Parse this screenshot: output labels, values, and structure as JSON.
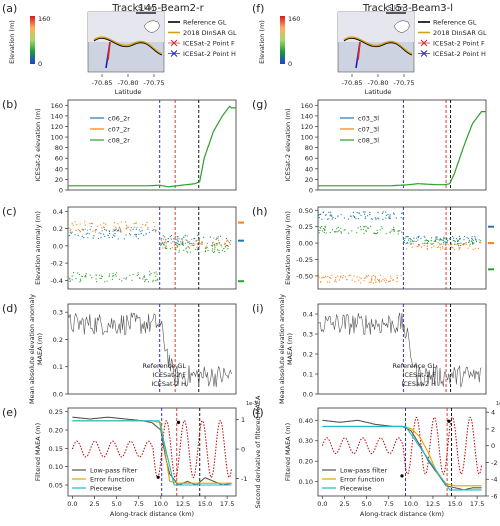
{
  "columns": [
    {
      "title": "Track145-Beam2-r",
      "panel_letters": [
        "(a)",
        "(b)",
        "(c)",
        "(d)",
        "(e)"
      ],
      "series_names": [
        "c06_2r",
        "c07_2r",
        "c08_2r"
      ]
    },
    {
      "title": "Track153-Beam3-l",
      "panel_letters": [
        "(f)",
        "(g)",
        "(h)",
        "(i)",
        "(j)"
      ],
      "series_names": [
        "c03_3l",
        "c07_3l",
        "c08_3l"
      ]
    }
  ],
  "map": {
    "colorbar_label": "Elevation (m)",
    "colorbar_ticks": [
      "160",
      "0"
    ],
    "scale_label": "5 km",
    "legend": [
      "Reference GL",
      "2018 DInSAR GL",
      "ICESat-2 Point F",
      "ICESat-2 Point H"
    ],
    "lat_axis_label": "Latitude",
    "lat_ticks": [
      "-70.85",
      "-70.80",
      "-70.75"
    ]
  },
  "labels": {
    "elev_ylabel": "ICESat-2 elevation (m)",
    "anom_ylabel": "Elevation anomaly (m)",
    "maea_ylabel": "Mean absolute elevation anomaly\nMAEA (m)",
    "filt_ylabel": "Filtered MAEA (m)",
    "deriv_ylabel": "Second derivative of filtered MAEA",
    "xlabel": "Along-track distance (km)",
    "deriv_exponent": "1e-3"
  },
  "line_legend_d": [
    "Reference GL",
    "ICESat-2 F",
    "ICESat-2 H"
  ],
  "line_legend_e": [
    "Low-pass filter",
    "Error function",
    "Piecewise"
  ],
  "colors": {
    "series1": "#1f77b4",
    "series2": "#ff7f0e",
    "series3": "#2ca02c",
    "ref_gl": "#000000",
    "point_f": "#d62728",
    "point_h": "#1f1fbf",
    "lowpass": "#555555",
    "errfun": "#e8a100",
    "piecewise": "#17becf",
    "deriv": "#c00000",
    "dinsar": "#d4a017"
  },
  "chart_data": [
    {
      "panel": "(b)",
      "type": "line",
      "xlim": [
        0,
        18.5
      ],
      "ylim": [
        0,
        170
      ],
      "yticks": [
        0,
        20,
        40,
        60,
        80,
        100,
        120,
        140,
        160
      ],
      "x": [
        0,
        2,
        4,
        6,
        8,
        9,
        10,
        10.5,
        11,
        12,
        13,
        13.5,
        14,
        14.5,
        15,
        16,
        17,
        17.8,
        18
      ],
      "series": [
        {
          "name": "c08_2r",
          "values": [
            8,
            8,
            8,
            8,
            8,
            8,
            9,
            8,
            6,
            8,
            10,
            11,
            12,
            16,
            60,
            110,
            140,
            158,
            155
          ]
        }
      ],
      "vlines": {
        "ref_gl": 14.4,
        "point_f": 11.8,
        "point_h": 10.1
      }
    },
    {
      "panel": "(c)",
      "type": "scatter",
      "xlim": [
        0,
        18.5
      ],
      "ylim": [
        -0.5,
        0.45
      ],
      "yticks": [
        -0.4,
        -0.2,
        0.0,
        0.2,
        0.4
      ],
      "series": [
        {
          "name": "c06_2r",
          "before": 0.14,
          "after": 0.06
        },
        {
          "name": "c07_2r",
          "before": 0.22,
          "after": 0.03
        },
        {
          "name": "c08_2r",
          "before": -0.36,
          "after": -0.02
        }
      ],
      "side_markers": [
        0.06,
        0.27,
        -0.41
      ],
      "vlines": {
        "ref_gl": 14.4,
        "point_f": 11.8,
        "point_h": 10.1
      }
    },
    {
      "panel": "(d)",
      "type": "line",
      "xlim": [
        0,
        18.5
      ],
      "ylim": [
        0,
        0.33
      ],
      "yticks": [
        0.0,
        0.1,
        0.2,
        0.3
      ],
      "vlines": {
        "ref_gl": 14.4,
        "point_f": 11.8,
        "point_h": 10.1
      }
    },
    {
      "panel": "(e)",
      "type": "line",
      "xlim": [
        -0.5,
        18.5
      ],
      "xticks": [
        0.0,
        2.5,
        5.0,
        7.5,
        10.0,
        12.5,
        15.0,
        17.5
      ],
      "ylim": [
        0.02,
        0.26
      ],
      "yticks": [
        0.05,
        0.1,
        0.15,
        0.2,
        0.25
      ],
      "y2lim": [
        -1.6,
        1.4
      ],
      "y2ticks": [
        -1,
        0,
        1
      ],
      "lowpass": {
        "x": [
          0,
          2,
          4,
          6,
          8,
          9,
          10,
          10.5,
          11,
          12,
          13,
          14,
          15,
          16,
          17,
          18
        ],
        "values": [
          0.235,
          0.23,
          0.235,
          0.23,
          0.225,
          0.22,
          0.2,
          0.13,
          0.08,
          0.05,
          0.06,
          0.05,
          0.07,
          0.06,
          0.05,
          0.055
        ]
      },
      "error_function": {
        "x": [
          0,
          9,
          10,
          10.5,
          11,
          12,
          18
        ],
        "values": [
          0.225,
          0.225,
          0.22,
          0.14,
          0.06,
          0.055,
          0.055
        ]
      },
      "piecewise": {
        "x": [
          0,
          9.8,
          11.5,
          18
        ],
        "values": [
          0.225,
          0.225,
          0.05,
          0.05
        ]
      },
      "vlines": {
        "ref_gl": 14.4,
        "point_f": 11.8,
        "point_h": 10.1
      }
    },
    {
      "panel": "(g)",
      "type": "line",
      "xlim": [
        0,
        18.5
      ],
      "ylim": [
        0,
        170
      ],
      "yticks": [
        0,
        20,
        40,
        60,
        80,
        100,
        120,
        140,
        160
      ],
      "x": [
        0,
        2,
        4,
        6,
        8,
        10,
        11,
        12,
        13,
        14,
        14.5,
        15,
        16,
        17,
        18
      ],
      "series": [
        {
          "name": "c08_3l",
          "values": [
            8,
            8,
            8,
            8,
            8,
            10,
            12,
            11,
            10,
            10,
            12,
            30,
            80,
            125,
            148
          ]
        }
      ],
      "vlines": {
        "ref_gl": 14.6,
        "point_f": 14.1,
        "point_h": 9.4
      }
    },
    {
      "panel": "(h)",
      "type": "scatter",
      "xlim": [
        0,
        18.5
      ],
      "ylim": [
        -0.7,
        0.55
      ],
      "yticks": [
        -0.5,
        -0.25,
        0.0,
        0.25,
        0.5
      ],
      "series": [
        {
          "name": "c03_3l",
          "before": 0.42,
          "after": 0.05
        },
        {
          "name": "c07_3l",
          "before": -0.55,
          "after": -0.05
        },
        {
          "name": "c08_3l",
          "before": 0.2,
          "after": 0.02
        }
      ],
      "side_markers": [
        0.25,
        0.0,
        -0.4
      ],
      "vlines": {
        "ref_gl": 14.6,
        "point_f": 14.1,
        "point_h": 9.4
      }
    },
    {
      "panel": "(i)",
      "type": "line",
      "xlim": [
        0,
        18.5
      ],
      "ylim": [
        0,
        0.45
      ],
      "yticks": [
        0.0,
        0.1,
        0.2,
        0.3,
        0.4
      ],
      "vlines": {
        "ref_gl": 14.6,
        "point_f": 14.1,
        "point_h": 9.4
      }
    },
    {
      "panel": "(j)",
      "type": "line",
      "xlim": [
        -0.5,
        18.5
      ],
      "xticks": [
        0.0,
        2.5,
        5.0,
        7.5,
        10.0,
        12.5,
        15.0,
        17.5
      ],
      "ylim": [
        0.03,
        0.46
      ],
      "yticks": [
        0.1,
        0.2,
        0.3,
        0.4
      ],
      "y2lim": [
        -6,
        4.5
      ],
      "y2ticks": [
        -6,
        -4,
        -2,
        0,
        2,
        4
      ],
      "lowpass": {
        "x": [
          0,
          2,
          4,
          6,
          8,
          9,
          10,
          11,
          12,
          13,
          14,
          15,
          16,
          17,
          18
        ],
        "values": [
          0.4,
          0.39,
          0.4,
          0.38,
          0.37,
          0.37,
          0.35,
          0.28,
          0.2,
          0.14,
          0.08,
          0.07,
          0.06,
          0.07,
          0.07
        ]
      },
      "error_function": {
        "x": [
          0,
          9,
          10,
          11,
          12,
          13,
          14,
          15,
          18
        ],
        "values": [
          0.37,
          0.37,
          0.36,
          0.32,
          0.24,
          0.14,
          0.09,
          0.08,
          0.08
        ]
      },
      "piecewise": {
        "x": [
          0,
          9.4,
          14.4,
          18
        ],
        "values": [
          0.37,
          0.37,
          0.06,
          0.06
        ]
      },
      "vlines": {
        "ref_gl": 14.6,
        "point_f": 14.1,
        "point_h": 9.4
      }
    }
  ]
}
